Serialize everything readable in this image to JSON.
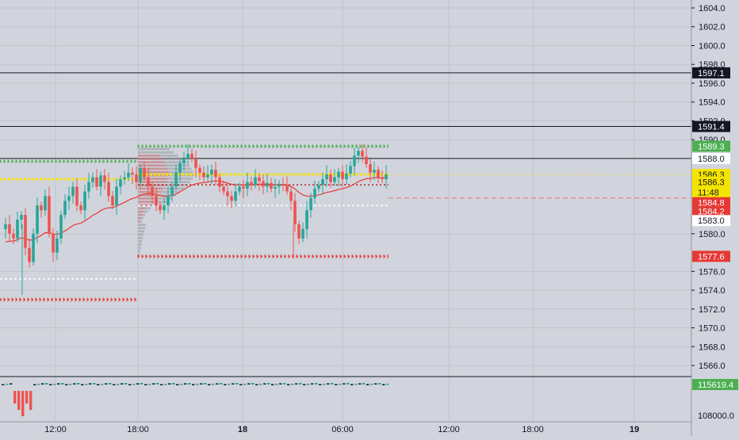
{
  "colors": {
    "background": "#d1d4dc",
    "bull": "#26a69a",
    "bear": "#ef5350",
    "grid_line": "#bfc3cc",
    "level_line": "#131722",
    "profile_bar": "#9598a1",
    "poc": "#f5e400",
    "vah_green": "#4caf50",
    "val_red": "#e53935",
    "ma_red": "#e53935"
  },
  "price_axis": {
    "ticks": [
      "1604.0",
      "1602.0",
      "1600.0",
      "1598.0",
      "1596.0",
      "1594.0",
      "1592.0",
      "1590.0",
      "1580.0",
      "1576.0",
      "1574.0",
      "1572.0",
      "1570.0",
      "1568.0",
      "1566.0"
    ],
    "labels": [
      {
        "text": "1597.1",
        "price": 1597.1,
        "style": "black"
      },
      {
        "text": "1591.4",
        "price": 1591.4,
        "style": "black"
      },
      {
        "text": "1589.3",
        "price": 1589.3,
        "style": "green"
      },
      {
        "text": "1588.0",
        "price": 1588.0,
        "style": "white"
      },
      {
        "text": "1586.3",
        "price": 1586.3,
        "style": "yellow"
      },
      {
        "text": "1586.3",
        "price": 1585.5,
        "style": "yellow"
      },
      {
        "text": "11:48",
        "price": 1584.4,
        "style": "yellow"
      },
      {
        "text": "1584.8",
        "price": 1583.3,
        "style": "red"
      },
      {
        "text": "1584.2",
        "price": 1582.4,
        "style": "red"
      },
      {
        "text": "1583.0",
        "price": 1581.4,
        "style": "white"
      },
      {
        "text": "1577.6",
        "price": 1577.6,
        "style": "red"
      }
    ]
  },
  "volume_axis": {
    "label": "115619.4",
    "tick": "108000.0"
  },
  "time_axis": {
    "ticks": [
      "12:00",
      "18:00",
      "18",
      "06:00",
      "12:00",
      "18:00",
      "19"
    ]
  },
  "price_range": {
    "min": 1564.5,
    "max": 1605.2
  },
  "horizontal_levels": [
    1597.1,
    1591.4,
    1588.0
  ]
}
